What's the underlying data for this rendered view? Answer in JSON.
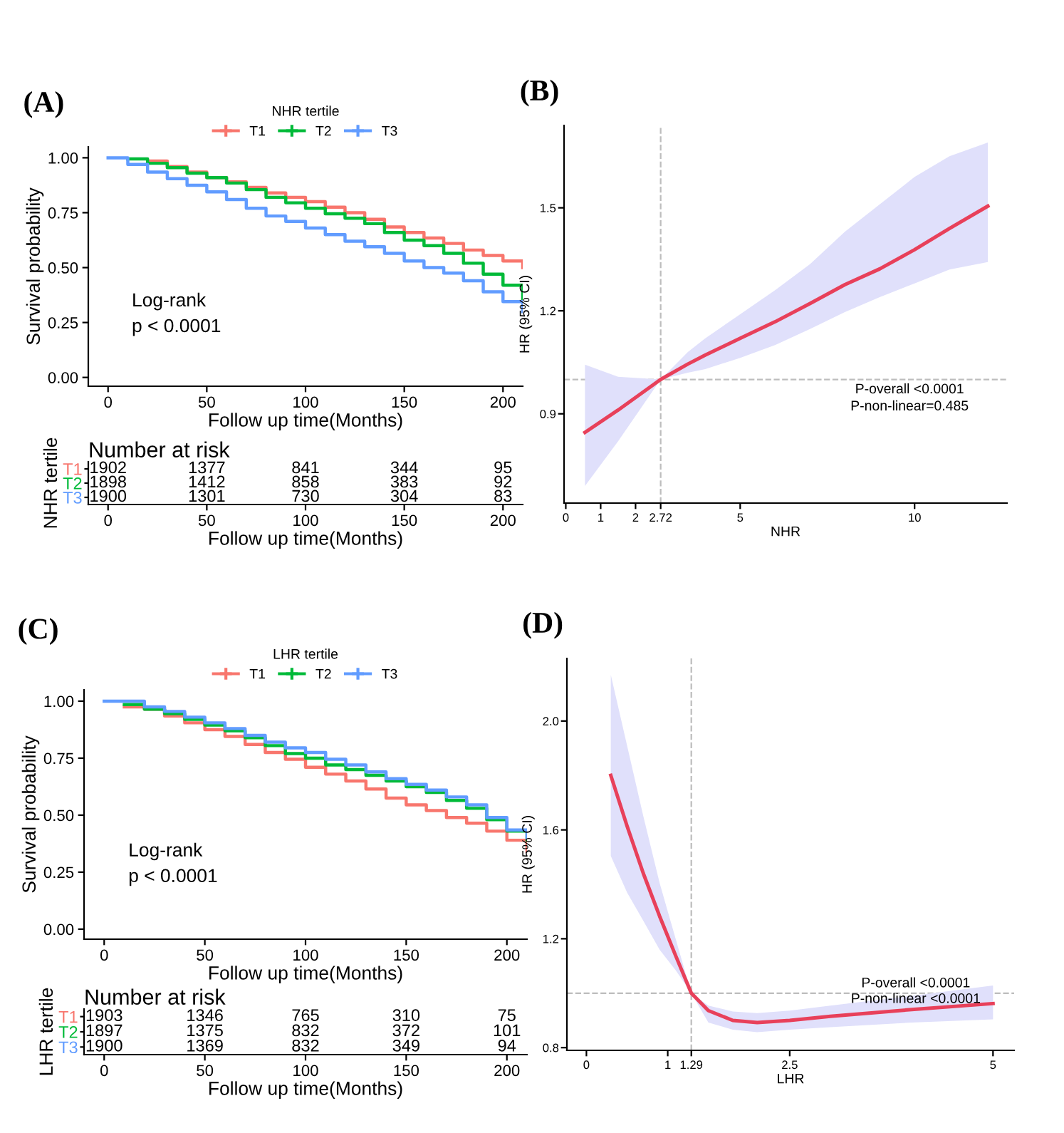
{
  "chart_data": [
    {
      "type": "step",
      "title": "(A)",
      "xlabel": "Follow up time(Months)",
      "ylabel": "Survival probability",
      "legend_title": "NHR tertile",
      "legend": "top",
      "grid": false,
      "x": [
        0,
        10,
        20,
        30,
        40,
        50,
        60,
        70,
        80,
        90,
        100,
        110,
        120,
        130,
        140,
        150,
        160,
        170,
        180,
        190,
        200,
        210
      ],
      "xlim": [
        -10,
        210
      ],
      "xticks": [
        0,
        50,
        100,
        150,
        200
      ],
      "ylim": [
        -0.04,
        1.05
      ],
      "yticks": [
        {
          "value": 0,
          "label": "0.00"
        },
        0.25,
        {
          "value": 0.5,
          "label": "0.50"
        },
        0.75,
        {
          "value": 1,
          "label": "1.00"
        }
      ],
      "annotations": [
        "Log-rank\np < 0.0001"
      ],
      "series": [
        {
          "name": "T1",
          "color": "#f8766d",
          "values": [
            null,
            null,
            0.985,
            0.96,
            0.935,
            0.91,
            0.89,
            0.865,
            0.84,
            0.82,
            0.8,
            0.775,
            0.75,
            0.72,
            0.685,
            0.66,
            0.635,
            0.61,
            0.58,
            0.555,
            0.53,
            0.5
          ]
        },
        {
          "name": "T2",
          "color": "#00ba38",
          "values": [
            null,
            0.995,
            0.975,
            0.955,
            0.93,
            0.91,
            0.885,
            0.855,
            0.82,
            0.795,
            0.77,
            0.745,
            0.725,
            0.7,
            0.66,
            0.625,
            0.6,
            0.565,
            0.52,
            0.47,
            0.42,
            0.36
          ]
        },
        {
          "name": "T3",
          "color": "#619cff",
          "values": [
            1.0,
            0.97,
            0.935,
            0.905,
            0.875,
            0.845,
            0.81,
            0.77,
            0.735,
            0.71,
            0.68,
            0.65,
            0.62,
            0.595,
            0.565,
            0.53,
            0.5,
            0.475,
            0.44,
            0.39,
            0.345,
            0.3
          ]
        }
      ]
    },
    {
      "type": "heatmap",
      "title": "Number at risk",
      "xlabel": "Follow up time(Months)",
      "ylabel": "NHR tertile",
      "data_labels": true,
      "categories": [
        "0",
        "50",
        "100",
        "150",
        "200"
      ],
      "y_categories": [
        "T1",
        "T2",
        "T3"
      ],
      "colors": [
        "#f8766d",
        "#00ba38",
        "#619cff"
      ],
      "cells": [
        [
          1902,
          1377,
          841,
          344,
          95
        ],
        [
          1898,
          1412,
          858,
          383,
          92
        ],
        [
          1900,
          1301,
          730,
          304,
          83
        ]
      ]
    },
    {
      "type": "line",
      "title": "(B)",
      "xlabel": "NHR",
      "ylabel": "HR (95% CI)",
      "grid": false,
      "xlim": [
        -0.05,
        12.65
      ],
      "xticks": [
        0,
        1,
        2,
        2.72,
        5,
        10
      ],
      "ylim": [
        0.64,
        1.74
      ],
      "yticks": [
        0.9,
        1.2,
        1.5
      ],
      "ref_lines": [
        {
          "axis": "x",
          "value": 2.72,
          "line_style": "dashed",
          "color": "#bdbdbd"
        },
        {
          "axis": "y",
          "value": 1,
          "line_style": "dashed",
          "color": "#bdbdbd"
        }
      ],
      "annotations": [
        "P-overall <0.0001",
        "P-non-linear=0.485"
      ],
      "series": [
        {
          "color": "#e8405a",
          "x": [
            0.55,
            1.5,
            2.72,
            3.5,
            4,
            5,
            6,
            7,
            8,
            9,
            10,
            11,
            12.1
          ],
          "values": [
            0.846,
            0.911,
            1.0,
            1.045,
            1.071,
            1.12,
            1.168,
            1.221,
            1.276,
            1.322,
            1.378,
            1.44,
            1.505
          ],
          "lower": [
            0.69,
            0.82,
            1.0,
            1.02,
            1.03,
            1.063,
            1.1,
            1.147,
            1.196,
            1.24,
            1.28,
            1.32,
            1.342
          ],
          "upper": [
            1.043,
            1.008,
            1.0,
            1.08,
            1.12,
            1.19,
            1.26,
            1.336,
            1.43,
            1.51,
            1.59,
            1.65,
            1.69
          ]
        }
      ]
    },
    {
      "type": "step",
      "title": "(C)",
      "xlabel": "Follow up time(Months)",
      "ylabel": "Survival probability",
      "legend_title": "LHR tertile",
      "legend": "top",
      "grid": false,
      "x": [
        0,
        10,
        20,
        30,
        40,
        50,
        60,
        70,
        80,
        90,
        100,
        110,
        120,
        130,
        140,
        150,
        160,
        170,
        180,
        190,
        200,
        210
      ],
      "xlim": [
        -10,
        210
      ],
      "xticks": [
        0,
        50,
        100,
        150,
        200
      ],
      "ylim": [
        -0.044,
        1.05
      ],
      "yticks": [
        {
          "value": 0,
          "label": "0.00"
        },
        0.25,
        {
          "value": 0.5,
          "label": "0.50"
        },
        0.75,
        {
          "value": 1,
          "label": "1.00"
        }
      ],
      "annotations": [
        "Log-rank\np < 0.0001"
      ],
      "series": [
        {
          "name": "T1",
          "color": "#f8766d",
          "values": [
            null,
            0.975,
            0.965,
            0.935,
            0.905,
            0.875,
            0.845,
            0.81,
            0.775,
            0.745,
            0.71,
            0.68,
            0.65,
            0.615,
            0.575,
            0.545,
            0.52,
            0.49,
            0.465,
            0.43,
            0.39,
            0.34
          ]
        },
        {
          "name": "T2",
          "color": "#00ba38",
          "values": [
            null,
            0.985,
            0.965,
            0.945,
            0.92,
            0.895,
            0.87,
            0.84,
            0.805,
            0.77,
            0.75,
            0.72,
            0.7,
            0.675,
            0.65,
            0.625,
            0.6,
            0.565,
            0.53,
            0.48,
            0.43,
            0.39
          ]
        },
        {
          "name": "T3",
          "color": "#619cff",
          "values": [
            1.0,
            1.0,
            0.975,
            0.955,
            0.93,
            0.905,
            0.88,
            0.85,
            0.82,
            0.795,
            0.775,
            0.745,
            0.72,
            0.69,
            0.66,
            0.635,
            0.61,
            0.58,
            0.545,
            0.49,
            0.435,
            0.4
          ]
        }
      ]
    },
    {
      "type": "heatmap",
      "title": "Number at risk",
      "xlabel": "Follow up time(Months)",
      "ylabel": "LHR tertile",
      "data_labels": true,
      "categories": [
        "0",
        "50",
        "100",
        "150",
        "200"
      ],
      "y_categories": [
        "T1",
        "T2",
        "T3"
      ],
      "colors": [
        "#f8766d",
        "#00ba38",
        "#619cff"
      ],
      "cells": [
        [
          1903,
          1346,
          765,
          310,
          75
        ],
        [
          1897,
          1375,
          832,
          372,
          101
        ],
        [
          1900,
          1369,
          832,
          349,
          94
        ]
      ]
    },
    {
      "type": "line",
      "title": "(D)",
      "xlabel": "LHR",
      "ylabel": "HR (95% CI)",
      "grid": false,
      "xlim": [
        -0.24,
        5.26
      ],
      "xticks": [
        0,
        1,
        1.29,
        2.5,
        5
      ],
      "ylim": [
        0.79,
        2.23
      ],
      "yticks": [
        0.8,
        1.2,
        1.6,
        {
          "value": 2,
          "label": "2.0"
        }
      ],
      "ref_lines": [
        {
          "axis": "x",
          "value": 1.29,
          "line_style": "dashed",
          "color": "#bdbdbd"
        },
        {
          "axis": "y",
          "value": 1,
          "line_style": "dashed",
          "color": "#bdbdbd"
        }
      ],
      "annotations": [
        "P-overall <0.0001",
        "P-non-linear <0.0001"
      ],
      "series": [
        {
          "color": "#e8405a",
          "x": [
            0.3,
            0.5,
            0.7,
            0.9,
            1.1,
            1.29,
            1.5,
            1.8,
            2.1,
            2.5,
            3,
            4,
            5
          ],
          "values": [
            1.8,
            1.614,
            1.44,
            1.283,
            1.136,
            1.0,
            0.936,
            0.9,
            0.892,
            0.9,
            0.915,
            0.94,
            0.962
          ],
          "lower": [
            1.504,
            1.37,
            1.266,
            1.16,
            1.083,
            1.0,
            0.892,
            0.866,
            0.857,
            0.866,
            0.875,
            0.892,
            0.904
          ],
          "upper": [
            2.17,
            1.91,
            1.65,
            1.405,
            1.197,
            1.0,
            0.954,
            0.933,
            0.927,
            0.936,
            0.954,
            0.99,
            1.028
          ]
        }
      ]
    }
  ]
}
